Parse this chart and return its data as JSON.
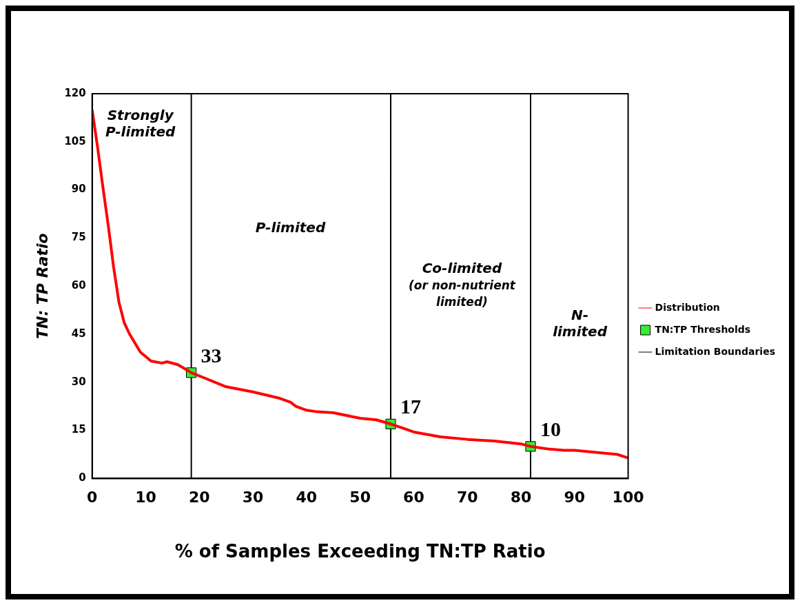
{
  "chart_data": {
    "type": "line",
    "xlabel": "% of Samples Exceeding TN:TP Ratio",
    "ylabel": "TN: TP Ratio",
    "xlim": [
      0,
      100
    ],
    "xticks": [
      0,
      10,
      20,
      30,
      40,
      50,
      60,
      70,
      80,
      90,
      100
    ],
    "ylim": [
      0,
      120
    ],
    "yticks": [
      0,
      15,
      30,
      45,
      60,
      75,
      90,
      105,
      120
    ],
    "grid": false,
    "legend": "right",
    "series": [
      {
        "name": "Distribution",
        "color": "#ff0000",
        "marker": "none",
        "x": [
          0,
          1,
          2,
          3,
          4,
          5,
          6,
          7,
          9,
          11,
          13,
          14,
          16,
          18.5,
          20,
          25,
          30,
          35,
          37,
          38,
          40,
          42,
          45,
          50,
          53,
          55.7,
          58,
          60,
          65,
          70,
          75,
          80,
          81.8,
          85,
          88,
          90,
          95,
          98,
          100
        ],
        "values": [
          115,
          103.5,
          91,
          79,
          66,
          55,
          48.5,
          45,
          39.4,
          36.6,
          36,
          36.4,
          35.5,
          33,
          32,
          28.6,
          27,
          25,
          23.8,
          22.5,
          21.3,
          20.8,
          20.5,
          18.8,
          18.3,
          17,
          15.7,
          14.5,
          13,
          12.2,
          11.7,
          10.8,
          10,
          9.2,
          8.8,
          8.8,
          8,
          7.5,
          6.4
        ]
      },
      {
        "name": "TN:TP Thresholds",
        "type": "scatter",
        "color": "#33ee33",
        "marker": "square",
        "x": [
          18.5,
          55.7,
          81.8
        ],
        "values": [
          33,
          17,
          10
        ],
        "value_labels": [
          "33",
          "17",
          "10"
        ]
      },
      {
        "name": "Limitation Boundaries",
        "type": "line",
        "color": "#000000",
        "marker": "none",
        "x": [
          18.5,
          18.5,
          55.7,
          55.7,
          81.8,
          81.8
        ],
        "values": [
          0,
          120,
          120,
          0,
          0,
          120
        ]
      }
    ],
    "annotations": [
      "Strongly\nP-limited",
      "P-limited",
      "Co-limited\n(or non-nutrient\nlimited)",
      "N-\nlimited"
    ]
  }
}
